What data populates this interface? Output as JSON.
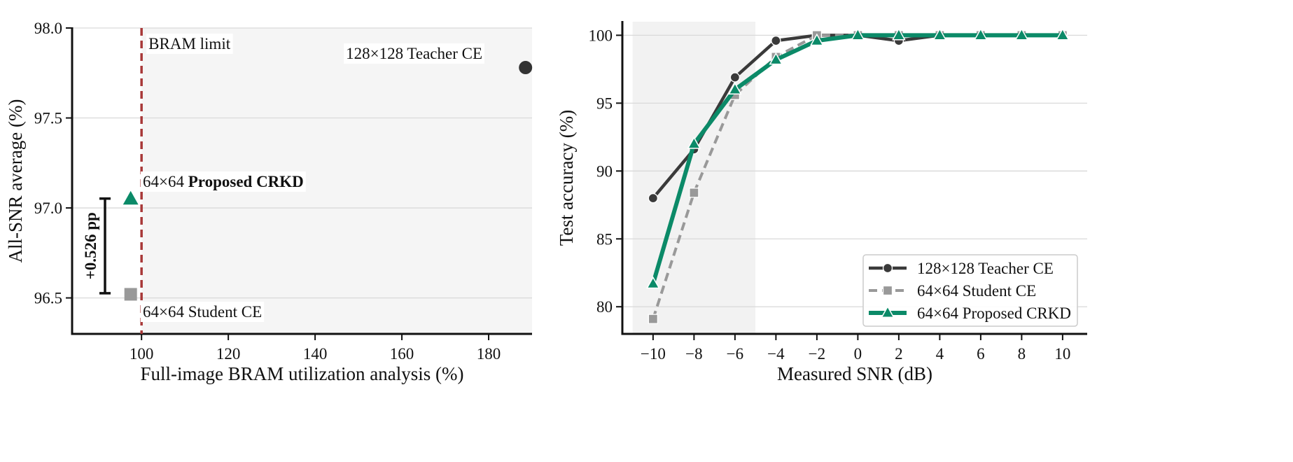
{
  "chart_data": [
    {
      "type": "scatter",
      "xlabel": "Full-image BRAM utilization analysis (%)",
      "ylabel": "All-SNR average (%)",
      "xlim": [
        84,
        190
      ],
      "ylim": [
        96.3,
        98.0
      ],
      "xticks": [
        100,
        120,
        140,
        160,
        180
      ],
      "yticks": [
        96.5,
        97.0,
        97.5,
        98.0
      ],
      "ytick_labels": [
        "96.5",
        "97.0",
        "97.5",
        "98.0"
      ],
      "grid": "horizontal",
      "points": [
        {
          "label": "128×128 Teacher CE",
          "x": 188.5,
          "y": 97.78,
          "marker": "circle",
          "color": "#333333"
        },
        {
          "label": "64×64 Student CE",
          "x": 97.5,
          "y": 96.52,
          "marker": "square",
          "color": "#999999"
        },
        {
          "label_prefix": "64×64 ",
          "label_bold": "Proposed CRKD",
          "x": 97.5,
          "y": 97.05,
          "marker": "triangle",
          "color": "#0b8a68"
        }
      ],
      "reference_line": {
        "x": 100,
        "label": "BRAM limit",
        "color": "#a83838"
      },
      "shaded_region": {
        "x_from": 100,
        "x_to": 190
      },
      "gain_annotation": {
        "label": "+0.526 pp",
        "y_from": 96.526,
        "y_to": 97.052
      }
    },
    {
      "type": "line",
      "xlabel": "Measured SNR (dB)",
      "ylabel": "Test accuracy (%)",
      "xlim": [
        -11.5,
        11.2
      ],
      "ylim": [
        78,
        101
      ],
      "x": [
        -10,
        -8,
        -6,
        -4,
        -2,
        0,
        2,
        4,
        6,
        8,
        10
      ],
      "x_tick_labels": [
        "−10",
        "−8",
        "−6",
        "−4",
        "−2",
        "0",
        "2",
        "4",
        "6",
        "8",
        "10"
      ],
      "yticks": [
        80,
        85,
        90,
        95,
        100
      ],
      "grid": "horizontal",
      "shaded_region": {
        "x_from": -11,
        "x_to": -5
      },
      "legend_position": "lower-right",
      "series": [
        {
          "name": "128×128 Teacher CE",
          "values": [
            88.0,
            91.6,
            96.9,
            99.6,
            100.0,
            100.0,
            99.6,
            100.0,
            100.0,
            100.0,
            100.0
          ],
          "color": "#3a3a3a",
          "marker": "circle",
          "dash": "solid"
        },
        {
          "name": "64×64 Student CE",
          "values": [
            79.1,
            88.4,
            95.6,
            98.4,
            100.0,
            100.0,
            100.0,
            100.0,
            100.0,
            100.0,
            100.0
          ],
          "color": "#999999",
          "marker": "square",
          "dash": "dashed"
        },
        {
          "name": "64×64 Proposed CRKD",
          "values": [
            81.7,
            92.0,
            96.0,
            98.2,
            99.6,
            100.0,
            100.0,
            100.0,
            100.0,
            100.0,
            100.0
          ],
          "color": "#0b8a68",
          "marker": "triangle",
          "dash": "solid"
        }
      ]
    }
  ]
}
